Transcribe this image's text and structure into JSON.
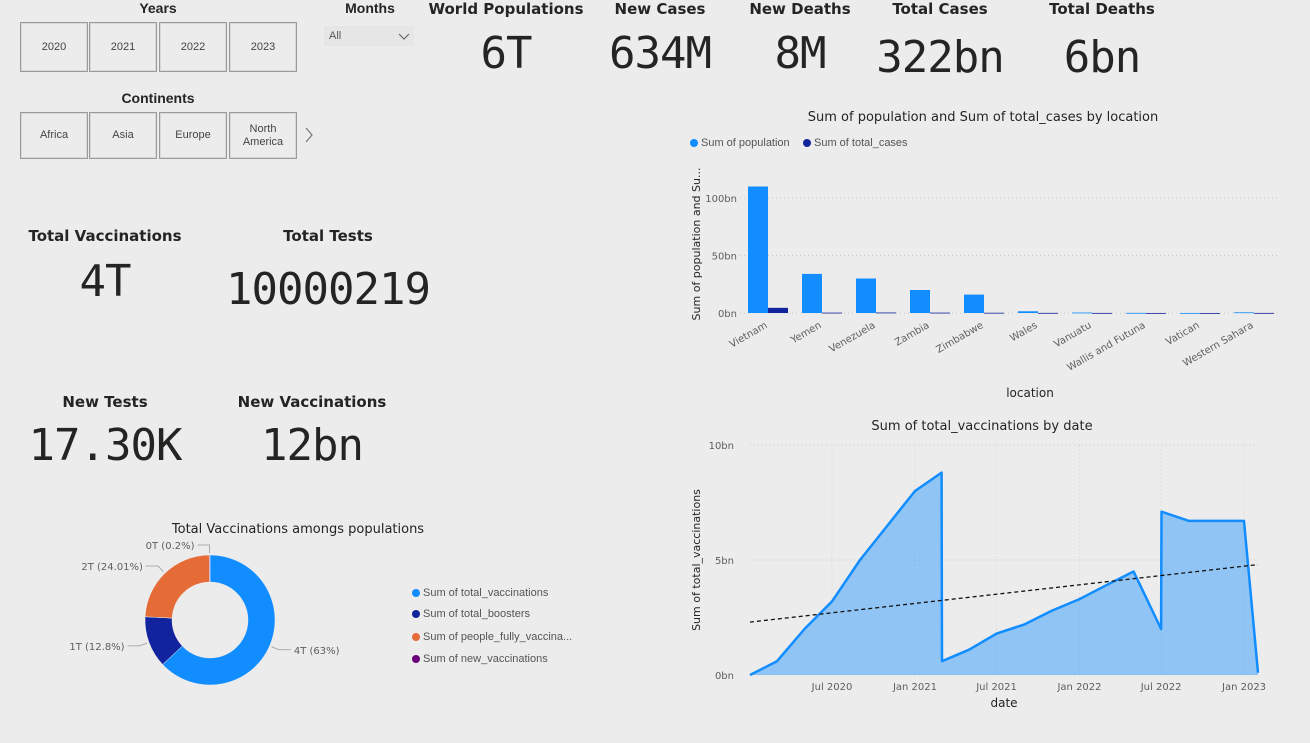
{
  "slicers": {
    "years": {
      "title": "Years",
      "items": [
        "2020",
        "2021",
        "2022",
        "2023"
      ]
    },
    "months": {
      "title": "Months",
      "value": "All"
    },
    "continents": {
      "title": "Continents",
      "items": [
        "Africa",
        "Asia",
        "Europe",
        "North America"
      ]
    }
  },
  "kpis": {
    "world_population": {
      "title": "World Populations",
      "value": "6T"
    },
    "new_cases": {
      "title": "New Cases",
      "value": "634M"
    },
    "new_deaths": {
      "title": "New Deaths",
      "value": "8M"
    },
    "total_cases": {
      "title": "Total Cases",
      "value": "322bn"
    },
    "total_deaths": {
      "title": "Total Deaths",
      "value": "6bn"
    },
    "total_vaccinations": {
      "title": "Total Vaccinations",
      "value": "4T"
    },
    "total_tests": {
      "title": "Total Tests",
      "value": "10000219"
    },
    "new_tests": {
      "title": "New Tests",
      "value": "17.30K"
    },
    "new_vaccinations": {
      "title": "New Vaccinations",
      "value": "12bn"
    }
  },
  "colors": {
    "primary": "#118dff",
    "navy": "#12239e",
    "orange": "#e66c37",
    "purple": "#6b007b"
  },
  "chart_data": [
    {
      "type": "bar",
      "title": "Sum of population and Sum of total_cases by location",
      "xlabel": "location",
      "ylabel": "Sum of population and Su...",
      "categories": [
        "Vietnam",
        "Yemen",
        "Venezuela",
        "Zambia",
        "Zimbabwe",
        "Wales",
        "Vanuatu",
        "Wallis and Futuna",
        "Vatican",
        "Western Sahara"
      ],
      "series": [
        {
          "name": "Sum of population",
          "color": "#118dff",
          "values": [
            110,
            34,
            30,
            20,
            16,
            1.5,
            0.4,
            0.1,
            0.01,
            0.6
          ]
        },
        {
          "name": "Sum of total_cases",
          "color": "#12239e",
          "values": [
            4.5,
            0.3,
            0.4,
            0.3,
            0.2,
            0.1,
            0.05,
            0.01,
            0.001,
            0.05
          ]
        }
      ],
      "yticks": [
        "0bn",
        "50bn",
        "100bn"
      ],
      "ylim": [
        0,
        120
      ],
      "legend": "top-left",
      "grid": true
    },
    {
      "type": "area",
      "title": "Sum of total_vaccinations by date",
      "xlabel": "date",
      "ylabel": "Sum of total_vaccinations",
      "series": [
        {
          "name": "total_vaccinations",
          "color": "#118dff",
          "x": [
            "2020-01-01",
            "2020-03-01",
            "2020-05-01",
            "2020-07-01",
            "2020-09-01",
            "2020-11-01",
            "2021-01-01",
            "2021-03-01",
            "2021-03-02",
            "2021-05-01",
            "2021-07-01",
            "2021-09-01",
            "2021-11-01",
            "2022-01-01",
            "2022-03-01",
            "2022-05-01",
            "2022-07-01",
            "2022-07-02",
            "2022-09-01",
            "2022-11-01",
            "2023-01-01",
            "2023-02-01"
          ],
          "y": [
            0.0,
            0.6,
            2.0,
            3.2,
            5.0,
            6.5,
            8.0,
            8.8,
            0.6,
            1.1,
            1.8,
            2.2,
            2.8,
            3.3,
            3.9,
            4.5,
            2.0,
            7.1,
            6.7,
            6.7,
            6.7,
            0.1
          ]
        }
      ],
      "trendline": {
        "x": [
          "2020-01-01",
          "2023-02-01"
        ],
        "y": [
          2.3,
          4.8
        ]
      },
      "xticks": [
        "Jul 2020",
        "Jan 2021",
        "Jul 2021",
        "Jan 2022",
        "Jul 2022",
        "Jan 2023"
      ],
      "yticks": [
        "0bn",
        "5bn",
        "10bn"
      ],
      "ylim": [
        0,
        10
      ],
      "grid": true
    },
    {
      "type": "pie",
      "title": "Total Vaccinations amongs populations",
      "labels": [
        "Sum of total_vaccinations",
        "Sum of total_boosters",
        "Sum of people_fully_vaccina...",
        "Sum of new_vaccinations"
      ],
      "values": [
        63,
        12.8,
        24.01,
        0.2
      ],
      "data_labels": [
        "4T (63%)",
        "1T (12.8%)",
        "2T (24.01%)",
        "0T (0.2%)"
      ],
      "colors": [
        "#118dff",
        "#12239e",
        "#e66c37",
        "#6b007b"
      ],
      "donut": true,
      "legend": "right"
    }
  ]
}
